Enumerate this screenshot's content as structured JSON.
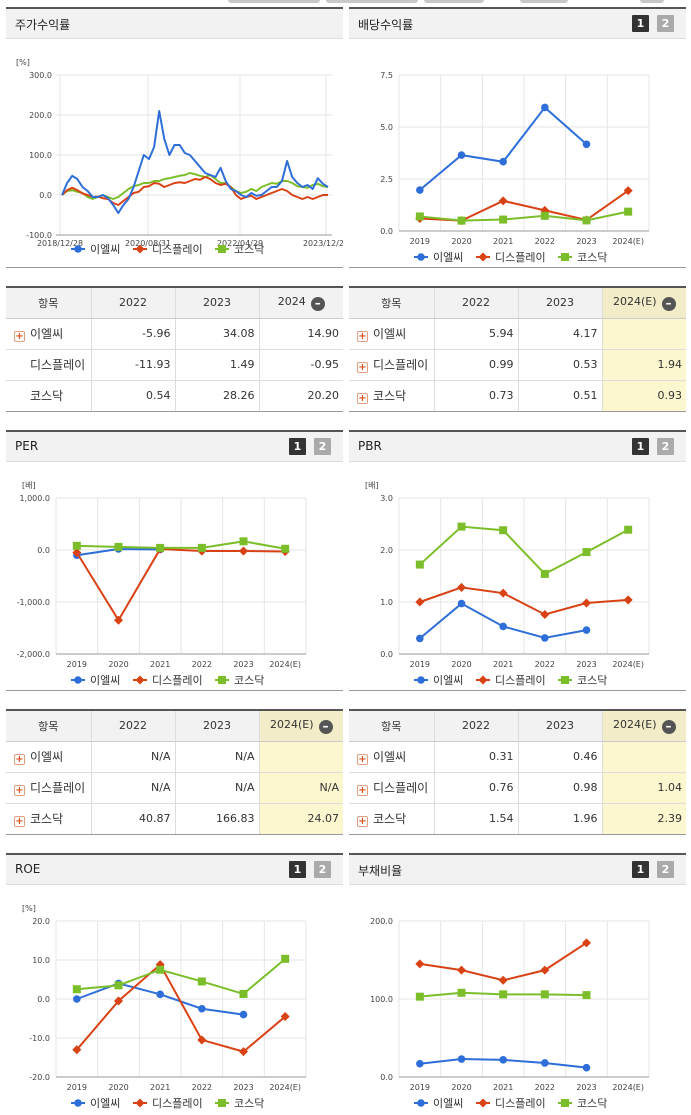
{
  "colors": {
    "s1": "#2e6ed8",
    "s2": "#d84214",
    "s3": "#7bbe2a"
  },
  "series_names": [
    "이엘씨",
    "디스플레이",
    "코스닥"
  ],
  "pager": [
    "1",
    "2"
  ],
  "panels": {
    "stock": {
      "title": "주가수익률",
      "unit": "[%]",
      "chart_data": {
        "type": "line",
        "x_tick_labels": [
          "2018/12/28",
          "2020/08/31",
          "2022/04/29",
          "2023/12/28"
        ],
        "ylim": [
          -100,
          300
        ],
        "y_ticks": [
          "300.0",
          "200.0",
          "100.0",
          "0.0",
          "-100.0"
        ],
        "series": [
          {
            "name": "이엘씨",
            "values": [
              0,
              30,
              48,
              40,
              20,
              10,
              -5,
              -5,
              0,
              -8,
              -25,
              -45,
              -25,
              -10,
              20,
              60,
              100,
              90,
              120,
              210,
              140,
              100,
              125,
              125,
              105,
              100,
              85,
              70,
              55,
              50,
              45,
              68,
              35,
              15,
              10,
              0,
              -5,
              5,
              -2,
              0,
              10,
              20,
              20,
              35,
              85,
              45,
              30,
              20,
              25,
              15,
              42,
              28,
              20
            ]
          },
          {
            "name": "디스플레이",
            "values": [
              0,
              12,
              18,
              12,
              4,
              0,
              -5,
              -4,
              -8,
              -10,
              -20,
              -25,
              -15,
              -5,
              5,
              8,
              20,
              22,
              30,
              28,
              20,
              25,
              30,
              32,
              30,
              35,
              40,
              38,
              45,
              40,
              30,
              25,
              28,
              20,
              0,
              -10,
              -5,
              -2,
              -10,
              -5,
              0,
              5,
              10,
              15,
              10,
              0,
              -5,
              -10,
              -5,
              -10,
              -5,
              0,
              0
            ]
          },
          {
            "name": "코스닥",
            "values": [
              0,
              10,
              12,
              8,
              5,
              -5,
              -10,
              -5,
              0,
              -5,
              -10,
              -5,
              5,
              15,
              22,
              25,
              30,
              30,
              35,
              35,
              40,
              42,
              45,
              48,
              50,
              55,
              52,
              48,
              45,
              50,
              40,
              30,
              30,
              20,
              10,
              5,
              8,
              15,
              10,
              20,
              25,
              30,
              28,
              35,
              35,
              30,
              22,
              20,
              18,
              25,
              28,
              22,
              20
            ]
          }
        ]
      }
    },
    "dividend": {
      "title": "배당수익률",
      "unit": "",
      "chart_data": {
        "type": "line",
        "categories": [
          "2019",
          "2020",
          "2021",
          "2022",
          "2023",
          "2024(E)"
        ],
        "ylim": [
          0,
          7.5
        ],
        "y_ticks": [
          "7.5",
          "5.0",
          "2.5",
          "0.0"
        ],
        "series": [
          {
            "name": "이엘씨",
            "values": [
              1.97,
              3.65,
              3.33,
              5.94,
              4.17,
              null
            ]
          },
          {
            "name": "디스플레이",
            "values": [
              0.6,
              0.5,
              1.45,
              0.99,
              0.53,
              1.94
            ]
          },
          {
            "name": "코스닥",
            "values": [
              0.7,
              0.5,
              0.55,
              0.73,
              0.51,
              0.93
            ]
          }
        ]
      }
    },
    "per": {
      "title": "PER",
      "unit": "[배]",
      "chart_data": {
        "type": "line",
        "categories": [
          "2019",
          "2020",
          "2021",
          "2022",
          "2023",
          "2024(E)"
        ],
        "ylim": [
          -2000,
          1000
        ],
        "y_ticks": [
          "1,000.0",
          "0.0",
          "-1,000.0",
          "-2,000.0"
        ],
        "series": [
          {
            "name": "이엘씨",
            "values": [
              -100,
              20,
              10,
              null,
              null,
              null
            ]
          },
          {
            "name": "디스플레이",
            "values": [
              -50,
              -1350,
              20,
              -20,
              -20,
              -30
            ]
          },
          {
            "name": "코스닥",
            "values": [
              80,
              60,
              40,
              40.87,
              166.83,
              24.07
            ]
          }
        ]
      }
    },
    "pbr": {
      "title": "PBR",
      "unit": "[배]",
      "chart_data": {
        "type": "line",
        "categories": [
          "2019",
          "2020",
          "2021",
          "2022",
          "2023",
          "2024(E)"
        ],
        "ylim": [
          0,
          3
        ],
        "y_ticks": [
          "3.0",
          "2.0",
          "1.0",
          "0.0"
        ],
        "series": [
          {
            "name": "이엘씨",
            "values": [
              0.3,
              0.97,
              0.53,
              0.31,
              0.46,
              null
            ]
          },
          {
            "name": "디스플레이",
            "values": [
              1.0,
              1.28,
              1.17,
              0.76,
              0.98,
              1.04
            ]
          },
          {
            "name": "코스닥",
            "values": [
              1.72,
              2.45,
              2.38,
              1.54,
              1.96,
              2.39
            ]
          }
        ]
      }
    },
    "roe": {
      "title": "ROE",
      "unit": "[%]",
      "chart_data": {
        "type": "line",
        "categories": [
          "2019",
          "2020",
          "2021",
          "2022",
          "2023",
          "2024(E)"
        ],
        "ylim": [
          -20,
          20
        ],
        "y_ticks": [
          "20.0",
          "10.0",
          "0.0",
          "-10.0",
          "-20.0"
        ],
        "series": [
          {
            "name": "이엘씨",
            "values": [
              0,
              4,
              1.2,
              -2.5,
              -4,
              null
            ]
          },
          {
            "name": "디스플레이",
            "values": [
              -13,
              -0.5,
              8.8,
              -10.5,
              -13.5,
              -4.5
            ]
          },
          {
            "name": "코스닥",
            "values": [
              2.5,
              3.5,
              7.5,
              4.5,
              1.3,
              10.3
            ]
          }
        ]
      }
    },
    "debt": {
      "title": "부채비율",
      "unit": "",
      "chart_data": {
        "type": "line",
        "categories": [
          "2019",
          "2020",
          "2021",
          "2022",
          "2023",
          "2024(E)"
        ],
        "ylim": [
          0,
          200
        ],
        "y_ticks": [
          "200.0",
          "100.0",
          "0.0"
        ],
        "series": [
          {
            "name": "이엘씨",
            "values": [
              17,
              23,
              22,
              18,
              12,
              null
            ]
          },
          {
            "name": "디스플레이",
            "values": [
              145,
              137,
              124,
              137,
              172,
              null
            ]
          },
          {
            "name": "코스닥",
            "values": [
              103,
              108,
              106,
              106,
              105,
              null
            ]
          }
        ]
      }
    }
  },
  "tables": {
    "stock": {
      "headers": [
        "항목",
        "2022",
        "2023",
        "2024"
      ],
      "rows": [
        {
          "label": "이엘씨",
          "expand": true,
          "cells": [
            "-5.96",
            "34.08",
            "14.90"
          ]
        },
        {
          "label": "디스플레이",
          "expand": false,
          "cells": [
            "-11.93",
            "1.49",
            "-0.95"
          ]
        },
        {
          "label": "코스닥",
          "expand": false,
          "cells": [
            "0.54",
            "28.26",
            "20.20"
          ]
        }
      ]
    },
    "dividend": {
      "headers": [
        "항목",
        "2022",
        "2023",
        "2024(E)"
      ],
      "rows": [
        {
          "label": "이엘씨",
          "expand": true,
          "cells": [
            "5.94",
            "4.17",
            ""
          ]
        },
        {
          "label": "디스플레이",
          "expand": true,
          "cells": [
            "0.99",
            "0.53",
            "1.94"
          ]
        },
        {
          "label": "코스닥",
          "expand": true,
          "cells": [
            "0.73",
            "0.51",
            "0.93"
          ]
        }
      ]
    },
    "per": {
      "headers": [
        "항목",
        "2022",
        "2023",
        "2024(E)"
      ],
      "rows": [
        {
          "label": "이엘씨",
          "expand": true,
          "cells": [
            "N/A",
            "N/A",
            ""
          ]
        },
        {
          "label": "디스플레이",
          "expand": true,
          "cells": [
            "N/A",
            "N/A",
            "N/A"
          ]
        },
        {
          "label": "코스닥",
          "expand": true,
          "cells": [
            "40.87",
            "166.83",
            "24.07"
          ]
        }
      ]
    },
    "pbr": {
      "headers": [
        "항목",
        "2022",
        "2023",
        "2024(E)"
      ],
      "rows": [
        {
          "label": "이엘씨",
          "expand": true,
          "cells": [
            "0.31",
            "0.46",
            ""
          ]
        },
        {
          "label": "디스플레이",
          "expand": true,
          "cells": [
            "0.76",
            "0.98",
            "1.04"
          ]
        },
        {
          "label": "코스닥",
          "expand": true,
          "cells": [
            "1.54",
            "1.96",
            "2.39"
          ]
        }
      ]
    }
  }
}
